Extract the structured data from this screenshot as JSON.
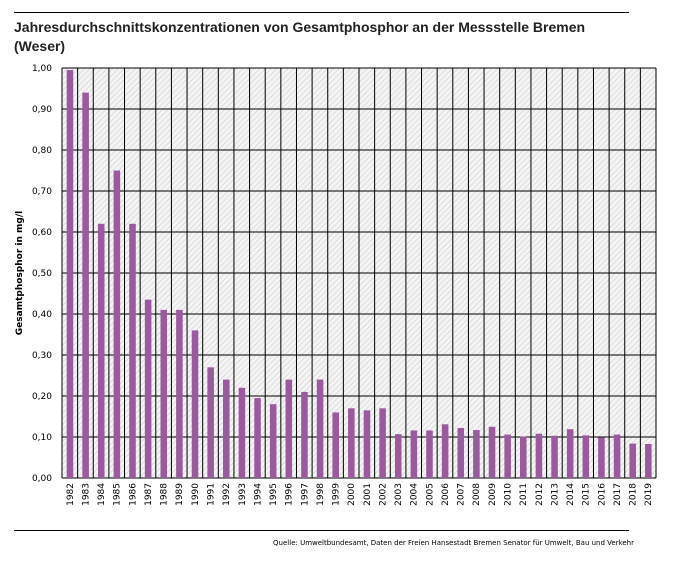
{
  "chart_data": {
    "type": "bar",
    "title": "Jahresdurchschnittskonzentrationen von Gesamtphosphor an der Messstelle Bremen (Weser)",
    "xlabel": "",
    "ylabel": "Gesamtphosphor in mg/l",
    "ylim": [
      0,
      1
    ],
    "yticks": [
      "0,00",
      "0,10",
      "0,20",
      "0,30",
      "0,40",
      "0,50",
      "0,60",
      "0,70",
      "0,80",
      "0,90",
      "1,00"
    ],
    "grid": true,
    "color": "#9b5a9e",
    "categories": [
      "1982",
      "1983",
      "1984",
      "1985",
      "1986",
      "1987",
      "1988",
      "1989",
      "1990",
      "1991",
      "1992",
      "1993",
      "1994",
      "1995",
      "1996",
      "1997",
      "1998",
      "1999",
      "2000",
      "2001",
      "2002",
      "2003",
      "2004",
      "2005",
      "2006",
      "2007",
      "2008",
      "2009",
      "2010",
      "2011",
      "2012",
      "2013",
      "2014",
      "2015",
      "2016",
      "2017",
      "2018",
      "2019"
    ],
    "values": [
      0.995,
      0.94,
      0.62,
      0.75,
      0.62,
      0.435,
      0.41,
      0.41,
      0.36,
      0.27,
      0.24,
      0.22,
      0.195,
      0.18,
      0.24,
      0.21,
      0.24,
      0.16,
      0.17,
      0.165,
      0.17,
      0.107,
      0.116,
      0.116,
      0.131,
      0.122,
      0.117,
      0.125,
      0.106,
      0.101,
      0.108,
      0.103,
      0.119,
      0.104,
      0.099,
      0.106,
      0.084,
      0.083
    ],
    "source": "Quelle: Umweltbundesamt, Daten der Freien Hansestadt Bremen Senator für Umwelt, Bau und Verkehr"
  }
}
